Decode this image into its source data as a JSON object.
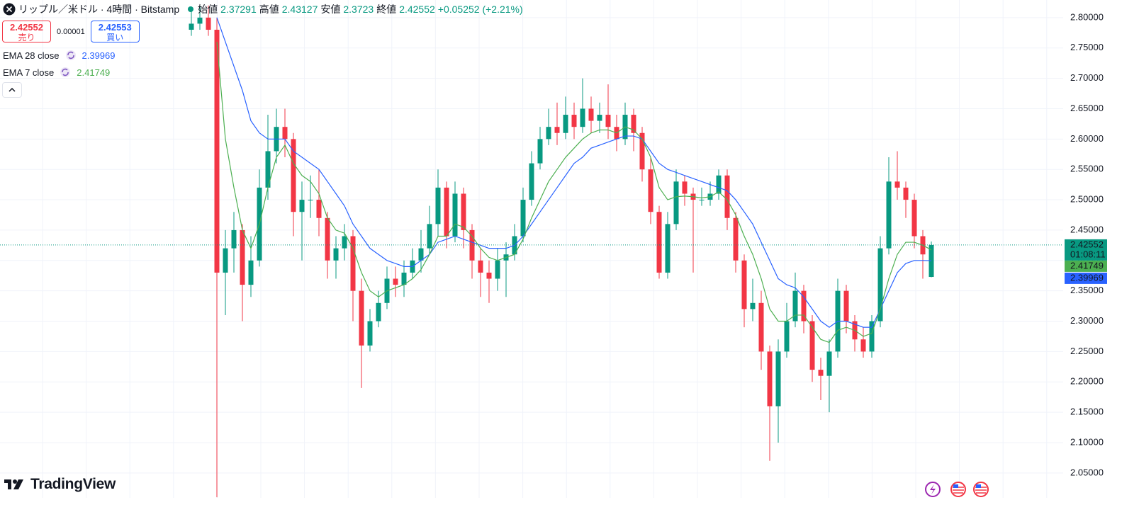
{
  "chart_data": {
    "type": "candlestick",
    "title": "リップル／米ドル · 4時間 · Bitstamp",
    "ohlc_labels": [
      "始値",
      "高値",
      "安値",
      "終値"
    ],
    "change": "+0.05252 (+2.21%)",
    "trade": {
      "sell_label": "売り",
      "buy_label": "買い",
      "buy": "2.42553",
      "spread": "0.00001"
    },
    "countdown": "01:08:11",
    "logo": "TradingView",
    "up_color": "#089981",
    "down_color": "#f23645",
    "ylim": [
      2.009,
      2.829
    ],
    "yticks": [
      {
        "value": 2.05,
        "label": "2.05000"
      },
      {
        "value": 2.1,
        "label": "2.10000"
      },
      {
        "value": 2.15,
        "label": "2.15000"
      },
      {
        "value": 2.2,
        "label": "2.20000"
      },
      {
        "value": 2.25,
        "label": "2.25000"
      },
      {
        "value": 2.3,
        "label": "2.30000"
      },
      {
        "value": 2.35,
        "label": "2.35000"
      },
      {
        "value": 2.4,
        "label": "2.40000"
      },
      {
        "value": 2.45,
        "label": "2.45000"
      },
      {
        "value": 2.5,
        "label": "2.50000"
      },
      {
        "value": 2.55,
        "label": "2.55000"
      },
      {
        "value": 2.6,
        "label": "2.60000"
      },
      {
        "value": 2.65,
        "label": "2.65000"
      },
      {
        "value": 2.7,
        "label": "2.70000"
      },
      {
        "value": 2.75,
        "label": "2.75000"
      },
      {
        "value": 2.8,
        "label": "2.80000"
      }
    ],
    "grid": true,
    "candles": [
      [
        2.78,
        2.81,
        2.77,
        2.79
      ],
      [
        2.79,
        2.82,
        2.78,
        2.8
      ],
      [
        2.8,
        2.82,
        2.77,
        2.78
      ],
      [
        2.78,
        2.8,
        2.01,
        2.38
      ],
      [
        2.38,
        2.45,
        2.31,
        2.42
      ],
      [
        2.42,
        2.48,
        2.38,
        2.45
      ],
      [
        2.45,
        2.46,
        2.3,
        2.36
      ],
      [
        2.36,
        2.44,
        2.34,
        2.4
      ],
      [
        2.4,
        2.55,
        2.39,
        2.52
      ],
      [
        2.52,
        2.64,
        2.5,
        2.58
      ],
      [
        2.58,
        2.65,
        2.56,
        2.62
      ],
      [
        2.62,
        2.65,
        2.57,
        2.6
      ],
      [
        2.6,
        2.61,
        2.44,
        2.48
      ],
      [
        2.48,
        2.53,
        2.4,
        2.5
      ],
      [
        2.5,
        2.54,
        2.47,
        2.5
      ],
      [
        2.5,
        2.55,
        2.44,
        2.47
      ],
      [
        2.47,
        2.48,
        2.37,
        2.4
      ],
      [
        2.4,
        2.44,
        2.37,
        2.42
      ],
      [
        2.42,
        2.46,
        2.4,
        2.44
      ],
      [
        2.44,
        2.45,
        2.3,
        2.35
      ],
      [
        2.35,
        2.37,
        2.19,
        2.26
      ],
      [
        2.26,
        2.32,
        2.25,
        2.3
      ],
      [
        2.3,
        2.35,
        2.29,
        2.33
      ],
      [
        2.33,
        2.39,
        2.32,
        2.37
      ],
      [
        2.37,
        2.39,
        2.34,
        2.36
      ],
      [
        2.36,
        2.4,
        2.34,
        2.38
      ],
      [
        2.38,
        2.42,
        2.37,
        2.4
      ],
      [
        2.4,
        2.45,
        2.38,
        2.42
      ],
      [
        2.42,
        2.49,
        2.41,
        2.46
      ],
      [
        2.46,
        2.55,
        2.44,
        2.52
      ],
      [
        2.52,
        2.53,
        2.42,
        2.44
      ],
      [
        2.44,
        2.53,
        2.43,
        2.51
      ],
      [
        2.51,
        2.52,
        2.42,
        2.45
      ],
      [
        2.45,
        2.46,
        2.37,
        2.4
      ],
      [
        2.4,
        2.42,
        2.34,
        2.38
      ],
      [
        2.38,
        2.4,
        2.33,
        2.37
      ],
      [
        2.37,
        2.42,
        2.35,
        2.4
      ],
      [
        2.4,
        2.43,
        2.34,
        2.41
      ],
      [
        2.41,
        2.46,
        2.4,
        2.44
      ],
      [
        2.44,
        2.52,
        2.43,
        2.5
      ],
      [
        2.5,
        2.58,
        2.49,
        2.56
      ],
      [
        2.56,
        2.62,
        2.55,
        2.6
      ],
      [
        2.6,
        2.65,
        2.59,
        2.62
      ],
      [
        2.62,
        2.66,
        2.59,
        2.61
      ],
      [
        2.61,
        2.67,
        2.6,
        2.64
      ],
      [
        2.64,
        2.66,
        2.6,
        2.62
      ],
      [
        2.62,
        2.7,
        2.61,
        2.65
      ],
      [
        2.65,
        2.67,
        2.61,
        2.63
      ],
      [
        2.63,
        2.66,
        2.61,
        2.64
      ],
      [
        2.64,
        2.69,
        2.6,
        2.62
      ],
      [
        2.62,
        2.64,
        2.58,
        2.6
      ],
      [
        2.6,
        2.66,
        2.59,
        2.64
      ],
      [
        2.64,
        2.65,
        2.58,
        2.61
      ],
      [
        2.61,
        2.62,
        2.53,
        2.55
      ],
      [
        2.55,
        2.57,
        2.46,
        2.48
      ],
      [
        2.48,
        2.49,
        2.37,
        2.38
      ],
      [
        2.38,
        2.48,
        2.37,
        2.46
      ],
      [
        2.46,
        2.55,
        2.45,
        2.53
      ],
      [
        2.53,
        2.54,
        2.49,
        2.51
      ],
      [
        2.51,
        2.52,
        2.38,
        2.5
      ],
      [
        2.5,
        2.52,
        2.49,
        2.5
      ],
      [
        2.5,
        2.53,
        2.49,
        2.51
      ],
      [
        2.51,
        2.55,
        2.5,
        2.54
      ],
      [
        2.54,
        2.55,
        2.45,
        2.47
      ],
      [
        2.47,
        2.48,
        2.38,
        2.4
      ],
      [
        2.4,
        2.41,
        2.29,
        2.32
      ],
      [
        2.32,
        2.37,
        2.3,
        2.33
      ],
      [
        2.33,
        2.35,
        2.22,
        2.25
      ],
      [
        2.25,
        2.26,
        2.07,
        2.16
      ],
      [
        2.16,
        2.27,
        2.1,
        2.25
      ],
      [
        2.25,
        2.33,
        2.24,
        2.3
      ],
      [
        2.3,
        2.38,
        2.29,
        2.35
      ],
      [
        2.35,
        2.36,
        2.28,
        2.3
      ],
      [
        2.3,
        2.31,
        2.2,
        2.22
      ],
      [
        2.22,
        2.24,
        2.17,
        2.21
      ],
      [
        2.21,
        2.27,
        2.15,
        2.25
      ],
      [
        2.25,
        2.37,
        2.24,
        2.35
      ],
      [
        2.35,
        2.36,
        2.28,
        2.3
      ],
      [
        2.3,
        2.31,
        2.25,
        2.27
      ],
      [
        2.27,
        2.29,
        2.24,
        2.25
      ],
      [
        2.25,
        2.31,
        2.24,
        2.3
      ],
      [
        2.3,
        2.44,
        2.29,
        2.42
      ],
      [
        2.42,
        2.57,
        2.41,
        2.53
      ],
      [
        2.53,
        2.58,
        2.5,
        2.52
      ],
      [
        2.52,
        2.53,
        2.47,
        2.5
      ],
      [
        2.5,
        2.51,
        2.42,
        2.44
      ],
      [
        2.44,
        2.45,
        2.37,
        2.41
      ],
      [
        2.37291,
        2.43127,
        2.3723,
        2.42552
      ]
    ],
    "series": [
      {
        "name": "EMA 28 close",
        "color": "#2962ff",
        "values": [
          null,
          null,
          null,
          2.8,
          2.76,
          2.72,
          2.68,
          2.63,
          2.61,
          2.6,
          2.6,
          2.6,
          2.58,
          2.57,
          2.56,
          2.55,
          2.53,
          2.51,
          2.49,
          2.46,
          2.44,
          2.42,
          2.41,
          2.4,
          2.395,
          2.39,
          2.39,
          2.4,
          2.41,
          2.43,
          2.435,
          2.44,
          2.435,
          2.43,
          2.425,
          2.42,
          2.42,
          2.42,
          2.425,
          2.44,
          2.46,
          2.48,
          2.5,
          2.52,
          2.54,
          2.56,
          2.57,
          2.585,
          2.59,
          2.595,
          2.6,
          2.605,
          2.605,
          2.6,
          2.58,
          2.56,
          2.55,
          2.545,
          2.54,
          2.535,
          2.53,
          2.525,
          2.52,
          2.515,
          2.5,
          2.48,
          2.46,
          2.43,
          2.4,
          2.37,
          2.36,
          2.355,
          2.34,
          2.32,
          2.3,
          2.29,
          2.3,
          2.3,
          2.295,
          2.29,
          2.29,
          2.32,
          2.35,
          2.38,
          2.395,
          2.4,
          2.4,
          2.39969
        ]
      },
      {
        "name": "EMA 7 close",
        "color": "#4caf50",
        "values": [
          null,
          null,
          null,
          2.76,
          2.6,
          2.52,
          2.45,
          2.42,
          2.46,
          2.52,
          2.57,
          2.59,
          2.56,
          2.54,
          2.53,
          2.51,
          2.47,
          2.45,
          2.445,
          2.42,
          2.38,
          2.35,
          2.34,
          2.35,
          2.355,
          2.36,
          2.37,
          2.385,
          2.41,
          2.44,
          2.44,
          2.46,
          2.455,
          2.44,
          2.42,
          2.405,
          2.4,
          2.405,
          2.41,
          2.435,
          2.47,
          2.5,
          2.53,
          2.55,
          2.57,
          2.585,
          2.6,
          2.61,
          2.615,
          2.615,
          2.61,
          2.62,
          2.615,
          2.6,
          2.57,
          2.52,
          2.5,
          2.505,
          2.506,
          2.505,
          2.503,
          2.505,
          2.513,
          2.5,
          2.475,
          2.44,
          2.41,
          2.37,
          2.32,
          2.3,
          2.3,
          2.31,
          2.31,
          2.29,
          2.27,
          2.265,
          2.285,
          2.29,
          2.285,
          2.275,
          2.28,
          2.32,
          2.37,
          2.41,
          2.43,
          2.43,
          2.425,
          2.41749
        ]
      }
    ]
  }
}
